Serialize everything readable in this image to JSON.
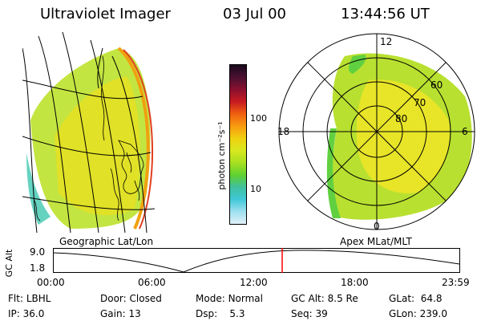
{
  "header": {
    "instrument": "Ultraviolet Imager",
    "date": "03 Jul 00",
    "time": "13:44:56 UT"
  },
  "left_panel": {
    "projection_label": "Geographic Lat/Lon"
  },
  "right_panel": {
    "projection_label": "Apex  MLat/MLT",
    "mlt_labels": {
      "top": "12",
      "right": "6",
      "bottom": "0",
      "left": "18"
    },
    "mlat_labels": [
      "60",
      "70",
      "80"
    ]
  },
  "colorbar": {
    "units_label": "photon cm⁻²s⁻¹",
    "tick_labels": [
      "100",
      "10"
    ],
    "colors": [
      "#1a0a1e",
      "#4a1030",
      "#8a1030",
      "#c81a20",
      "#f06010",
      "#f89a10",
      "#f0d010",
      "#d8e820",
      "#a8e020",
      "#60d030",
      "#40c0a0",
      "#40c8d8",
      "#a0e0f0",
      "#e0f0f8"
    ]
  },
  "altitude_plot": {
    "y_axis_label": "GC Alt",
    "y_ticks": [
      "9.0",
      "1.8"
    ],
    "x_ticks": [
      "00:00",
      "06:00",
      "12:00",
      "18:00",
      "23:59"
    ],
    "marker_color": "#ff0000"
  },
  "status": {
    "row1": [
      {
        "label": "Flt:",
        "value": "LBHL"
      },
      {
        "label": "Door:",
        "value": "Closed"
      },
      {
        "label": "Mode:",
        "value": "Normal"
      },
      {
        "label": "GC Alt:",
        "value": "8.5 Re"
      },
      {
        "label": "GLat:",
        "value": "64.8"
      }
    ],
    "row2": [
      {
        "label": "IP:",
        "value": "36.0"
      },
      {
        "label": "Gain:",
        "value": "13"
      },
      {
        "label": "Dsp:",
        "value": "5.3"
      },
      {
        "label": "Seq:",
        "value": "39"
      },
      {
        "label": "GLon:",
        "value": "239.0"
      }
    ]
  }
}
